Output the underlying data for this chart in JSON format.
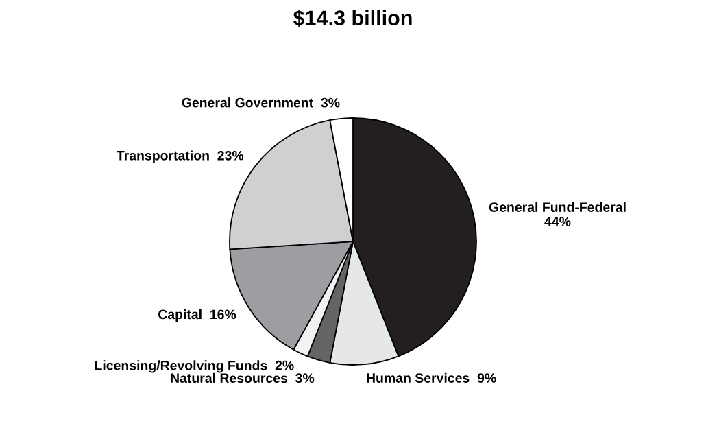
{
  "chart_data": {
    "type": "pie",
    "title": "$14.3 billion",
    "categories": [
      "General Fund-Federal",
      "Human Services",
      "Natural Resources",
      "Licensing/Revolving Funds",
      "Capital",
      "Transportation",
      "General Government"
    ],
    "values": [
      44,
      9,
      3,
      2,
      16,
      23,
      3
    ],
    "colors": [
      "#231f20",
      "#e6e7e8",
      "#636466",
      "#f2f2f2",
      "#9c9ea1",
      "#cfd0d2",
      "#ffffff"
    ],
    "value_labels": [
      "44%",
      "9%",
      "3%",
      "2%",
      "16%",
      "23%",
      "3%"
    ]
  }
}
